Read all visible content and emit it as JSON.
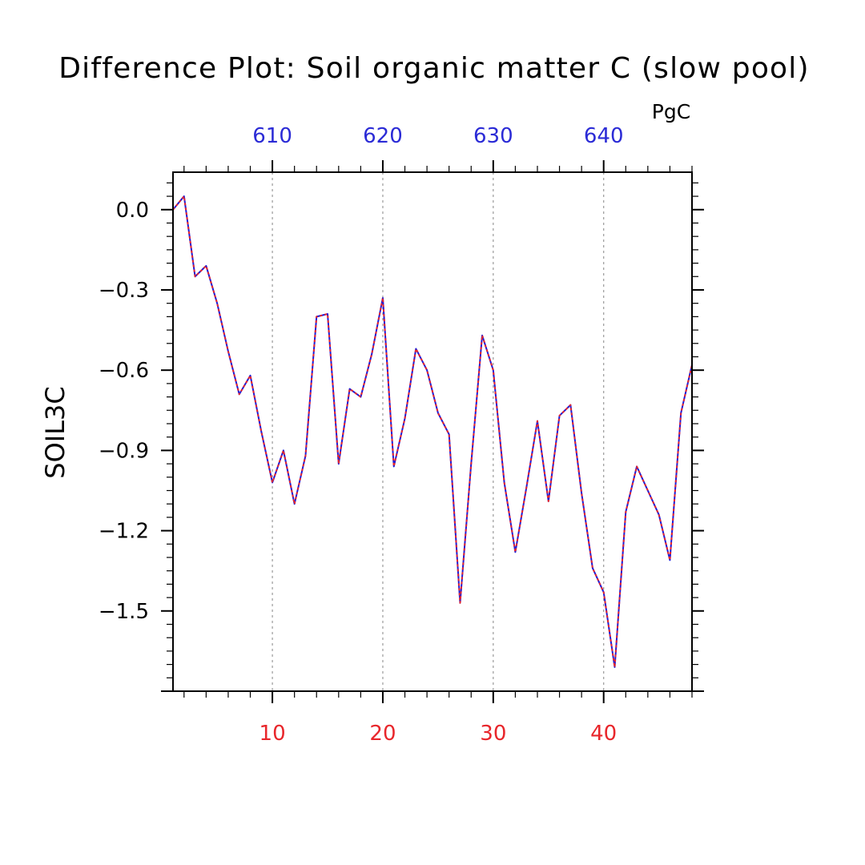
{
  "chart_data": {
    "type": "line",
    "title": "Difference Plot: Soil organic matter C (slow pool)",
    "units": "PgC",
    "ylabel": "SOIL3C",
    "xlabel": "",
    "xlim": [
      1,
      48
    ],
    "ylim": [
      -1.8,
      0.14
    ],
    "grid": "vertical dashed at bottom major ticks",
    "bottom_axis": {
      "ticks": [
        10,
        20,
        30,
        40
      ],
      "tick_labels": [
        "10",
        "20",
        "30",
        "40"
      ],
      "color": "#e8262b"
    },
    "top_axis": {
      "tick_labels": [
        "610",
        "620",
        "630",
        "640"
      ],
      "tick_positions": [
        10,
        20,
        30,
        40
      ],
      "color": "#2b2bd6"
    },
    "y_ticks": [
      0.0,
      -0.3,
      -0.6,
      -0.9,
      -1.2,
      -1.5
    ],
    "y_tick_labels": [
      "0.0",
      "−0.3",
      "−0.6",
      "−0.9",
      "−1.2",
      "−1.5"
    ],
    "x": [
      1,
      2,
      3,
      4,
      5,
      6,
      7,
      8,
      9,
      10,
      11,
      12,
      13,
      14,
      15,
      16,
      17,
      18,
      19,
      20,
      21,
      22,
      23,
      24,
      25,
      26,
      27,
      28,
      29,
      30,
      31,
      32,
      33,
      34,
      35,
      36,
      37,
      38,
      39,
      40,
      41,
      42,
      43,
      44,
      45,
      46,
      47,
      48
    ],
    "series": [
      {
        "values": [
          0.0,
          0.05,
          -0.25,
          -0.21,
          -0.35,
          -0.53,
          -0.69,
          -0.62,
          -0.83,
          -1.02,
          -0.9,
          -1.1,
          -0.92,
          -0.4,
          -0.39,
          -0.95,
          -0.67,
          -0.7,
          -0.54,
          -0.33,
          -0.96,
          -0.78,
          -0.52,
          -0.6,
          -0.76,
          -0.84,
          -1.47,
          -0.95,
          -0.47,
          -0.6,
          -1.02,
          -1.28,
          -1.04,
          -0.79,
          -1.09,
          -0.77,
          -0.73,
          -1.06,
          -1.34,
          -1.43,
          -1.71,
          -1.13,
          -0.96,
          -1.05,
          -1.14,
          -1.31,
          -0.76,
          -0.58
        ],
        "colors": [
          "#1d1dd9",
          "#e8262b"
        ],
        "style": "dashed red over solid blue"
      }
    ]
  }
}
